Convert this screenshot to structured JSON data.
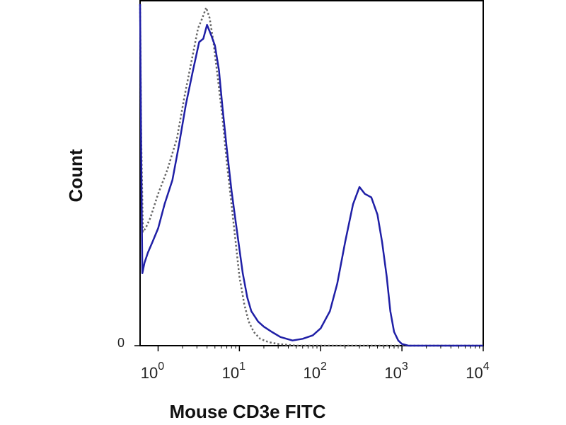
{
  "chart_data": {
    "type": "line",
    "title": "",
    "xlabel": "Mouse CD3e FITC",
    "ylabel": "Count",
    "x_scale": "log",
    "xlim": [
      0.6,
      10000
    ],
    "ylim": [
      0,
      1.0
    ],
    "grid": false,
    "legend": "none",
    "x_ticks": [
      {
        "value": 1,
        "base": "10",
        "exp": "0"
      },
      {
        "value": 10,
        "base": "10",
        "exp": "1"
      },
      {
        "value": 100,
        "base": "10",
        "exp": "2"
      },
      {
        "value": 1000,
        "base": "10",
        "exp": "3"
      },
      {
        "value": 10000,
        "base": "10",
        "exp": "4"
      }
    ],
    "y_ticks": [
      {
        "value": 0,
        "label": "0"
      }
    ],
    "series": [
      {
        "style": "dotted",
        "color": "#666666",
        "points": [
          [
            0.6,
            0.99
          ],
          [
            0.62,
            0.6
          ],
          [
            0.65,
            0.33
          ],
          [
            0.7,
            0.34
          ],
          [
            0.8,
            0.37
          ],
          [
            1.0,
            0.44
          ],
          [
            1.3,
            0.51
          ],
          [
            1.7,
            0.6
          ],
          [
            2.1,
            0.72
          ],
          [
            2.6,
            0.83
          ],
          [
            3.1,
            0.92
          ],
          [
            3.5,
            0.95
          ],
          [
            3.9,
            0.98
          ],
          [
            4.3,
            0.95
          ],
          [
            4.8,
            0.88
          ],
          [
            5.4,
            0.78
          ],
          [
            6.2,
            0.66
          ],
          [
            7.0,
            0.53
          ],
          [
            8.0,
            0.41
          ],
          [
            9.0,
            0.3
          ],
          [
            10.0,
            0.2
          ],
          [
            11.5,
            0.12
          ],
          [
            13.0,
            0.07
          ],
          [
            15.0,
            0.04
          ],
          [
            18.0,
            0.02
          ],
          [
            23.0,
            0.01
          ],
          [
            30.0,
            0.005
          ],
          [
            50.0,
            0.0
          ],
          [
            10000,
            0.0
          ]
        ]
      },
      {
        "style": "solid",
        "color": "#1f1fa6",
        "points": [
          [
            0.6,
            0.99
          ],
          [
            0.62,
            0.55
          ],
          [
            0.64,
            0.21
          ],
          [
            0.68,
            0.24
          ],
          [
            0.75,
            0.27
          ],
          [
            0.85,
            0.3
          ],
          [
            1.0,
            0.34
          ],
          [
            1.2,
            0.41
          ],
          [
            1.5,
            0.48
          ],
          [
            1.8,
            0.58
          ],
          [
            2.2,
            0.7
          ],
          [
            2.7,
            0.8
          ],
          [
            3.2,
            0.88
          ],
          [
            3.6,
            0.89
          ],
          [
            4.0,
            0.93
          ],
          [
            4.5,
            0.9
          ],
          [
            5.0,
            0.87
          ],
          [
            5.6,
            0.8
          ],
          [
            6.2,
            0.69
          ],
          [
            7.0,
            0.57
          ],
          [
            8.0,
            0.45
          ],
          [
            9.0,
            0.36
          ],
          [
            10.0,
            0.28
          ],
          [
            11.0,
            0.21
          ],
          [
            12.5,
            0.14
          ],
          [
            14.0,
            0.1
          ],
          [
            17.0,
            0.07
          ],
          [
            20.0,
            0.055
          ],
          [
            25.0,
            0.04
          ],
          [
            32.0,
            0.025
          ],
          [
            45.0,
            0.015
          ],
          [
            60.0,
            0.02
          ],
          [
            80.0,
            0.03
          ],
          [
            100.0,
            0.05
          ],
          [
            130.0,
            0.1
          ],
          [
            160.0,
            0.18
          ],
          [
            200.0,
            0.3
          ],
          [
            250.0,
            0.41
          ],
          [
            300.0,
            0.46
          ],
          [
            350.0,
            0.44
          ],
          [
            420.0,
            0.43
          ],
          [
            500.0,
            0.38
          ],
          [
            570.0,
            0.3
          ],
          [
            650.0,
            0.2
          ],
          [
            720.0,
            0.1
          ],
          [
            800.0,
            0.04
          ],
          [
            900.0,
            0.015
          ],
          [
            1000.0,
            0.005
          ],
          [
            1200.0,
            0.0
          ],
          [
            10000,
            0.0
          ]
        ]
      }
    ]
  }
}
